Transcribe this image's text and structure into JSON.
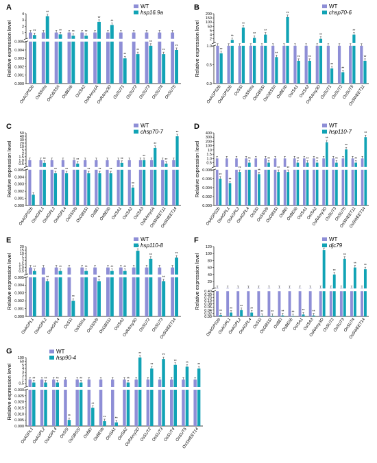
{
  "colors": {
    "wt": "#8e8ed6",
    "mutant": "#11a3b5"
  },
  "chart_data": [
    {
      "type": "bar",
      "panel": "A",
      "ylabel": "Relative expression level",
      "axis_break": true,
      "yticks_top": [
        "0",
        "1",
        "2",
        "3",
        "4"
      ],
      "yticks_bottom": [
        "0.000",
        "0.001",
        "0.002",
        "0.003",
        "0.004",
        "0.005"
      ],
      "ylim_top": [
        0,
        4
      ],
      "ylim_bottom": [
        0,
        0.005
      ],
      "categories": [
        "OsAGPS2b",
        "OsSSIIIa",
        "OsGBSSII",
        "OsBEIIb",
        "OsISA2",
        "OsRAmy1A",
        "OsRAmy3D",
        "OsSUT1",
        "OsSUT2",
        "OsSUT3",
        "OsSUT4",
        "OsSUT5"
      ],
      "series": [
        {
          "name": "WT",
          "values": [
            1,
            1,
            1,
            1,
            1,
            1,
            1,
            1,
            1,
            1,
            1,
            1
          ],
          "stars": [
            "",
            "",
            "",
            "",
            "",
            "",
            "",
            "",
            "",
            "",
            "",
            ""
          ]
        },
        {
          "name": "hsp16.9a",
          "values": [
            0.6,
            3.6,
            0.7,
            0.5,
            0.5,
            2.7,
            2.2,
            0.003,
            0.0035,
            0.0045,
            0.0035,
            0.004
          ],
          "stars": [
            "**",
            "**",
            "**",
            "**",
            "**",
            "**",
            "**",
            "**",
            "**",
            "**",
            "**",
            "**"
          ]
        }
      ]
    },
    {
      "type": "bar",
      "panel": "B",
      "ylabel": "Relative expression level",
      "axis_break": true,
      "yticks_top": [
        "0",
        "2",
        "4",
        "5",
        "50",
        "100",
        "150",
        "200"
      ],
      "yticks_bottom": [
        "0.0",
        "0.5",
        "1.0"
      ],
      "categories": [
        "OsAGPS2b",
        "OsAGPS2b",
        "OsSSI",
        "OsSSIIIa",
        "OsGBSSI",
        "OsGBSSII",
        "OsBEIIb",
        "OsISA1",
        "OsISA2",
        "OsRAmy3D",
        "OsSUT1",
        "OsSUT2",
        "OsSUT5",
        "OsSWEET11"
      ],
      "series": [
        {
          "name": "WT",
          "values": [
            1,
            1,
            1,
            1,
            1,
            1,
            1,
            1,
            1,
            1,
            1,
            1,
            1,
            1
          ],
          "stars": [
            "",
            "",
            "",
            "",
            "",
            "",
            "",
            "",
            "",
            "",
            "",
            "",
            "",
            ""
          ]
        },
        {
          "name": "chsp70-6",
          "values": [
            0.8,
            1.5,
            35,
            2.5,
            4.0,
            0.7,
            160,
            0.6,
            0.6,
            2.0,
            0.4,
            0.3,
            4.0,
            0.6
          ],
          "stars": [
            "**",
            "**",
            "**",
            "**",
            "**",
            "**",
            "**",
            "**",
            "**",
            "**",
            "**",
            "**",
            "**",
            "**"
          ]
        }
      ]
    },
    {
      "type": "bar",
      "panel": "C",
      "ylabel": "Relative expression level",
      "axis_break": true,
      "yticks_top": [
        "0",
        "0.5",
        "1.0",
        "1.5",
        "2",
        "5",
        "10",
        "20",
        "30",
        "40",
        "50"
      ],
      "yticks_bottom": [
        "0.000",
        "0.001",
        "0.002",
        "0.003",
        "0.004",
        "0.005"
      ],
      "categories": [
        "OsAGPS2b",
        "OsAGPL1",
        "OsAGPL2",
        "OsAGPL4",
        "OsSSIVb",
        "OsGBSSI",
        "OsBEI",
        "OsBEIIb",
        "OsISA1",
        "OsISA2",
        "OsISA3",
        "OsRAmy1A",
        "OsSWEET11",
        "OsSWEET14"
      ],
      "series": [
        {
          "name": "WT",
          "values": [
            1,
            1,
            1,
            1,
            1,
            1,
            1,
            1,
            1,
            1,
            1,
            1,
            1,
            1
          ],
          "stars": [
            "",
            "",
            "",
            "",
            "",
            "",
            "",
            "",
            "",
            "",
            "",
            "",
            "",
            ""
          ]
        },
        {
          "name": "chsp70-7",
          "values": [
            0.0015,
            0.6,
            0.0045,
            0.0045,
            0.5,
            0.0045,
            0.0045,
            0.0045,
            0.6,
            0.0025,
            1.0,
            8,
            0.5,
            40
          ],
          "stars": [
            "",
            "**",
            "**",
            "**",
            "**",
            "**",
            "**",
            "**",
            "**",
            "**",
            "**",
            "**",
            "**",
            "**"
          ]
        }
      ]
    },
    {
      "type": "bar",
      "panel": "D",
      "ylabel": "Relative expression level",
      "axis_break": true,
      "yticks_top": [
        "0",
        "0.5",
        "1.0",
        "1.5",
        "10",
        "100",
        "200",
        "300",
        "400"
      ],
      "yticks_bottom": [
        "0.000",
        "0.002",
        "0.004",
        "0.006",
        "0.008"
      ],
      "categories": [
        "OsAGPS2b",
        "OsAGPL1",
        "OsAGPL2",
        "OsAGPL4",
        "OsSSI",
        "OsSSIVb",
        "OsGBSSI",
        "OsBEI",
        "OsBEIIb",
        "OsISA1",
        "OsISA2",
        "OsRAmy3D",
        "OsSUT3",
        "OsSUT5",
        "OsSWEET11",
        "OsSWEET14"
      ],
      "series": [
        {
          "name": "WT",
          "values": [
            1,
            1,
            1,
            1,
            1,
            1,
            1,
            1,
            1,
            1,
            1,
            1,
            1,
            1,
            1,
            1
          ],
          "stars": [
            "",
            "",
            "",
            "",
            "",
            "",
            "",
            "",
            "",
            "",
            "",
            "",
            "",
            "",
            "",
            ""
          ]
        },
        {
          "name": "hsp110-7",
          "values": [
            0.006,
            0.005,
            0.0075,
            0.5,
            0.007,
            0.5,
            0.0075,
            0.0075,
            0.5,
            0.5,
            0.5,
            180,
            0.5,
            20,
            0.5,
            300
          ],
          "stars": [
            "**",
            "**",
            "**",
            "**",
            "**",
            "**",
            "**",
            "**",
            "**",
            "**",
            "**",
            "**",
            "**",
            "**",
            "**",
            "**"
          ]
        }
      ]
    },
    {
      "type": "bar",
      "panel": "E",
      "ylabel": "Relative expression level",
      "axis_break": true,
      "yticks_top": [
        "0",
        "0.5",
        "1.0",
        "1.5",
        "2",
        "5",
        "10",
        "15",
        "20"
      ],
      "yticks_bottom": [
        "0.000",
        "0.001",
        "0.002",
        "0.003",
        "0.004",
        "0.005"
      ],
      "categories": [
        "OsAGPL1",
        "OsAGPL2",
        "OsAGPL4",
        "OsSSI",
        "OsSSIIIa",
        "OsSSIVb",
        "OsGBSSI",
        "OsISA2",
        "OsRAmy3D",
        "OsSUT2",
        "OsSUT3",
        "OsSWEET14"
      ],
      "series": [
        {
          "name": "WT",
          "values": [
            1,
            1,
            1,
            1,
            1,
            1,
            1,
            1,
            1,
            1,
            1,
            1
          ],
          "stars": [
            "",
            "",
            "",
            "",
            "",
            "",
            "",
            "",
            "",
            "",
            "",
            ""
          ]
        },
        {
          "name": "hsp110-8",
          "values": [
            0.5,
            0.0045,
            0.5,
            0.002,
            0.5,
            0.0045,
            0.5,
            0.5,
            14,
            3.5,
            0.0045,
            4.5
          ],
          "stars": [
            "**",
            "**",
            "**",
            "**",
            "**",
            "**",
            "**",
            "**",
            "**",
            "**",
            "**",
            "**"
          ]
        }
      ]
    },
    {
      "type": "bar",
      "panel": "F",
      "ylabel": "Relative expression level",
      "axis_break": true,
      "yticks_top": [
        "0",
        "20",
        "40",
        "60",
        "80",
        "100",
        "120"
      ],
      "yticks_bottom": [
        "0.00",
        "0.02",
        "0.04",
        "0.06",
        "0.08",
        "0.10",
        "0.20",
        "0.30",
        "0.40"
      ],
      "categories": [
        "OsAGPS2b",
        "OsAGPL1",
        "OsAGPL2",
        "OsAGPL4",
        "OsSSI",
        "OsGBSSI",
        "OsBEI",
        "OsBEIIb",
        "OsISA1",
        "OsISA3",
        "OsRAmy3D",
        "OsSUT2",
        "OsSUT3",
        "OsSUT4",
        "OsSWEET14"
      ],
      "series": [
        {
          "name": "WT",
          "values": [
            1,
            1,
            1,
            1,
            1,
            1,
            1,
            1,
            1,
            1,
            1,
            1,
            1,
            1,
            1
          ],
          "stars": [
            "",
            "",
            "",
            "",
            "",
            "",
            "",
            "",
            "",
            "",
            "",
            "",
            "",
            "",
            ""
          ]
        },
        {
          "name": "djc79",
          "values": [
            0.02,
            0.06,
            0.1,
            0.06,
            0.01,
            0.01,
            0.015,
            0.008,
            0.03,
            0.015,
            110,
            40,
            85,
            60,
            55
          ],
          "stars": [
            "**",
            "**",
            "**",
            "**",
            "**",
            "**",
            "**",
            "**",
            "**",
            "**",
            "**",
            "**",
            "**",
            "**",
            "**"
          ]
        }
      ]
    },
    {
      "type": "bar",
      "panel": "G",
      "ylabel": "Relative expression level",
      "axis_break": true,
      "yticks_top": [
        "0",
        "0.5",
        "1",
        "2",
        "3",
        "4",
        "5",
        "50",
        "100"
      ],
      "yticks_bottom": [
        "0.000",
        "0.005",
        "0.010",
        "0.015",
        "0.020",
        "0.025",
        "0.030"
      ],
      "categories": [
        "OsAGPL1",
        "OsAGPL2",
        "OsAGPL4",
        "OsSSI",
        "OsGBSSI",
        "OsBEI",
        "OsBEIIb",
        "OsISA1",
        "OsISA2",
        "OsRAmy3D",
        "OsSUT2",
        "OsSUT3",
        "OsSUT4",
        "OsSUT5",
        "OsSWEET14"
      ],
      "series": [
        {
          "name": "WT",
          "values": [
            1,
            1,
            1,
            1,
            1,
            1,
            1,
            1,
            1,
            1,
            1,
            1,
            1,
            1,
            1
          ],
          "stars": [
            "",
            "",
            "",
            "",
            "",
            "",
            "",
            "",
            "",
            "",
            "",
            "",
            "",
            "",
            ""
          ]
        },
        {
          "name": "hsp90-4",
          "values": [
            0.6,
            0.6,
            0.6,
            0.005,
            0.6,
            0.015,
            0.004,
            0.003,
            0.6,
            110,
            4,
            80,
            5,
            4.5,
            4
          ],
          "stars": [
            "**",
            "**",
            "**",
            "**",
            "**",
            "**",
            "**",
            "**",
            "**",
            "**",
            "**",
            "**",
            "**",
            "**",
            "**"
          ]
        }
      ]
    }
  ]
}
